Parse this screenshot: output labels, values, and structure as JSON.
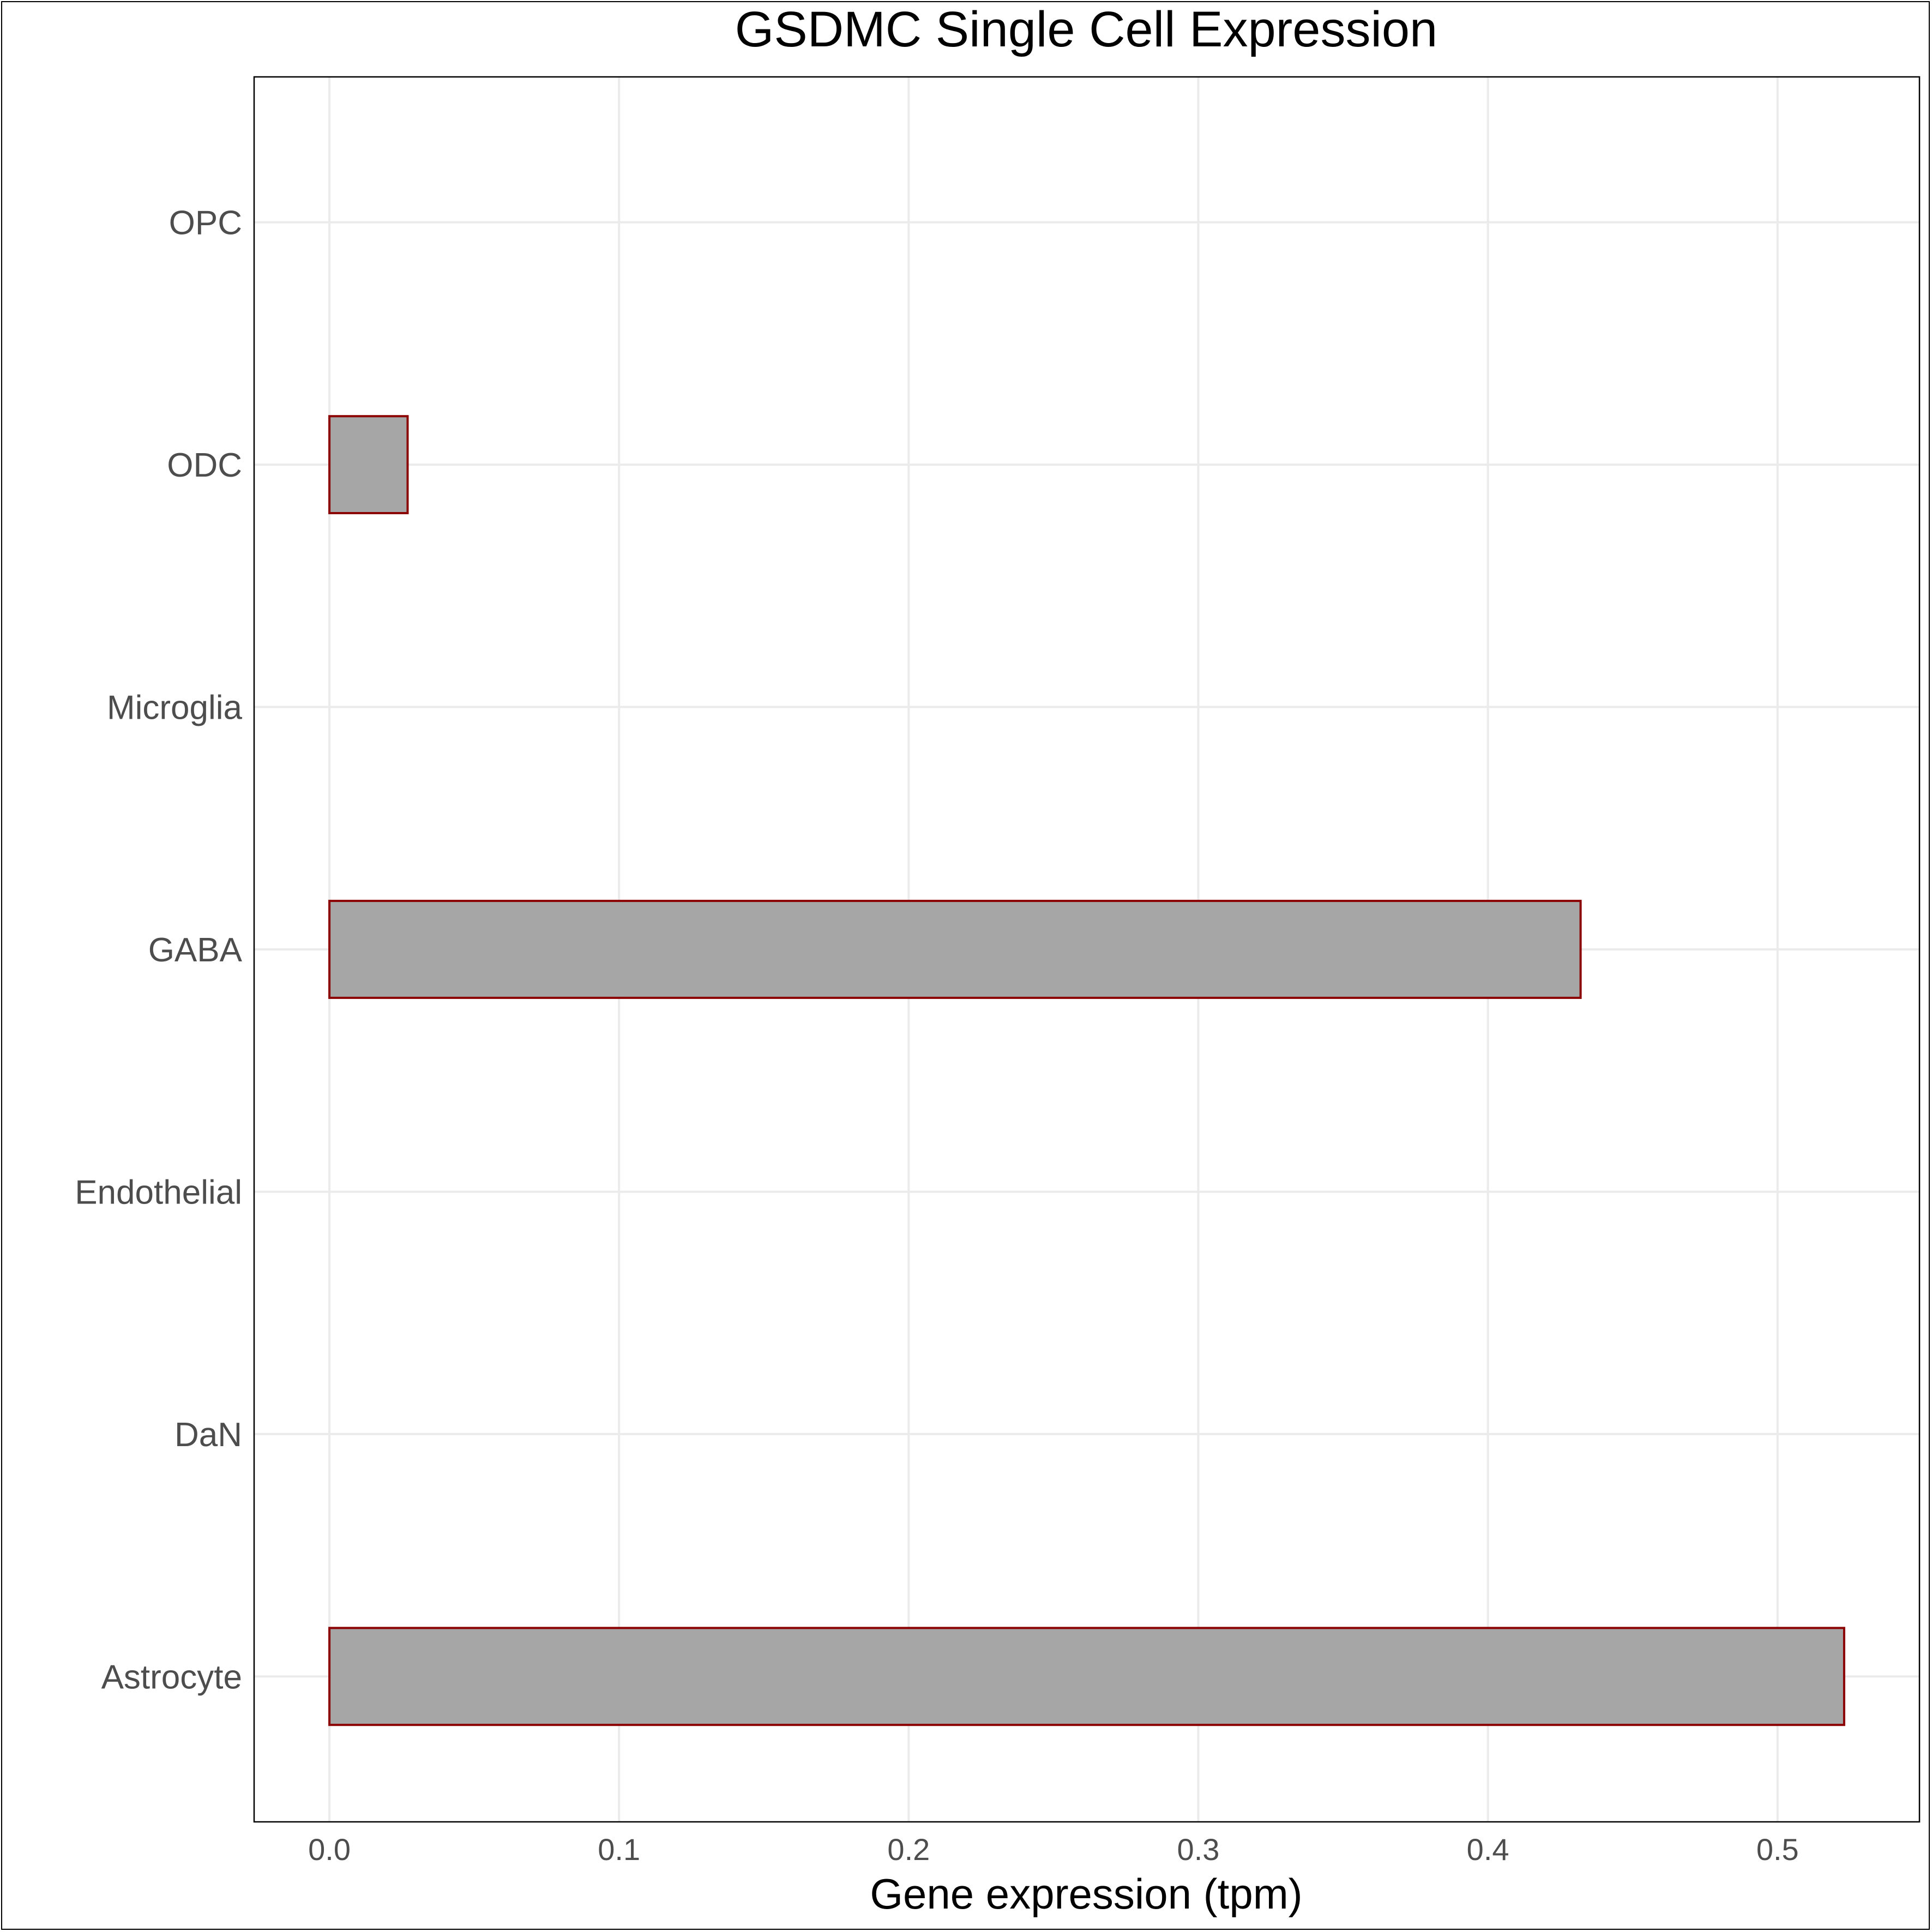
{
  "chart_data": {
    "type": "bar",
    "orientation": "horizontal",
    "title": "GSDMC Single Cell Expression",
    "xlabel": "Gene expression (tpm)",
    "ylabel": "",
    "categories": [
      "Astrocyte",
      "DaN",
      "Endothelial",
      "GABA",
      "Microglia",
      "ODC",
      "OPC"
    ],
    "values": [
      0.523,
      0.0,
      0.0,
      0.432,
      0.0,
      0.027,
      0.0
    ],
    "xlim": [
      -0.026,
      0.549
    ],
    "xticks": [
      0.0,
      0.1,
      0.2,
      0.3,
      0.4,
      0.5
    ],
    "xtick_labels": [
      "0.0",
      "0.1",
      "0.2",
      "0.3",
      "0.4",
      "0.5"
    ],
    "grid": true,
    "legend": "none",
    "colors": {
      "bar_fill": "#a6a6a6",
      "bar_stroke": "#8b0000",
      "grid": "#ebebeb",
      "panel_border": "#000000"
    }
  }
}
